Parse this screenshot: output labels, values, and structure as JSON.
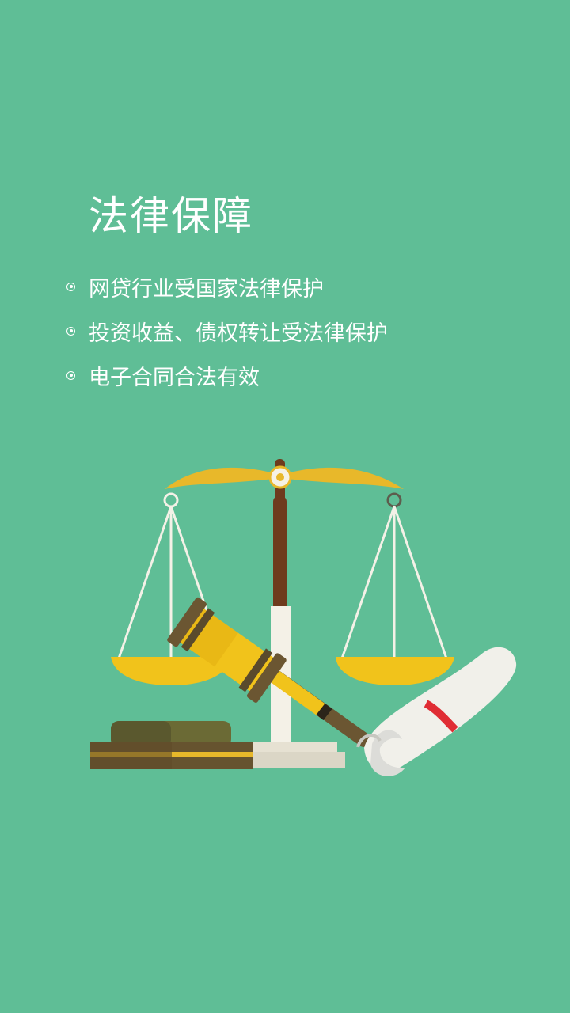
{
  "page": {
    "background_color": "#5fbe96",
    "title": "法律保障",
    "bullets": [
      "网贷行业受国家法律保护",
      "投资收益、债权转让受法律保护",
      "电子合同合法有效"
    ]
  },
  "colors": {
    "beam_yellow": "#e8b82a",
    "post_brown": "#6e3b1d",
    "gavel_yellow": "#f1c31b",
    "gavel_band": "#6b5632",
    "block_olive": "#5c5a2f",
    "scroll_white": "#f1f0ea",
    "scroll_ribbon": "#e02d34"
  },
  "icons": {
    "bullet": "radio-dot-icon",
    "illustration": "scales-gavel-scroll-illustration"
  }
}
